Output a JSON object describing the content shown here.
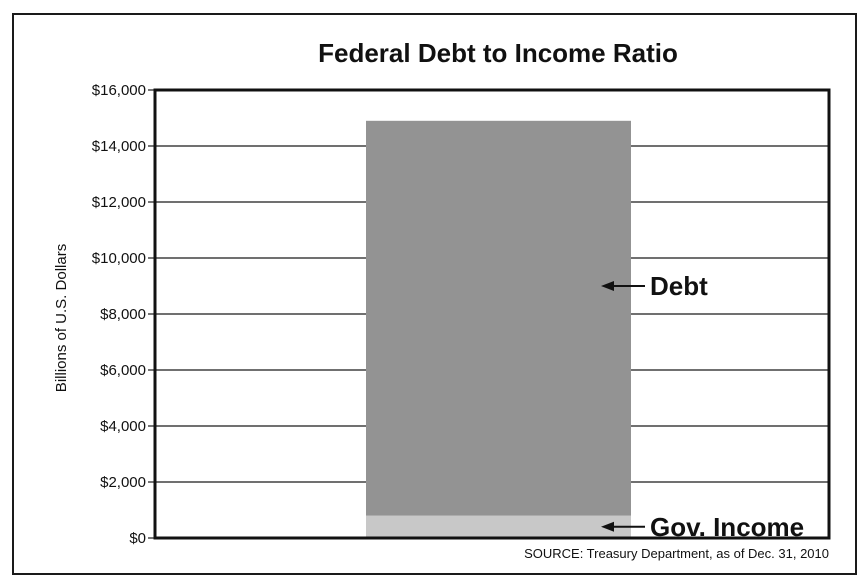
{
  "chart_data": {
    "type": "bar",
    "title": "Federal Debt to Income Ratio",
    "ylabel": "Billions of U.S. Dollars",
    "ylim": [
      0,
      16000
    ],
    "yticks": [
      0,
      2000,
      4000,
      6000,
      8000,
      10000,
      12000,
      14000,
      16000
    ],
    "ytick_labels": [
      "$0",
      "$2,000",
      "$4,000",
      "$6,000",
      "$8,000",
      "$10,000",
      "$12,000",
      "$14,000",
      "$16,000"
    ],
    "grid": true,
    "stacked": true,
    "series": [
      {
        "name": "Gov. Income",
        "value": 800,
        "color": "#c8c8c8"
      },
      {
        "name": "Debt",
        "value": 14100,
        "color": "#939393"
      }
    ],
    "annotations": [
      {
        "text": "Debt",
        "series": "Debt"
      },
      {
        "text": "Gov. Income",
        "series": "Gov. Income"
      }
    ],
    "source": "SOURCE: Treasury Department, as of Dec. 31, 2010"
  }
}
